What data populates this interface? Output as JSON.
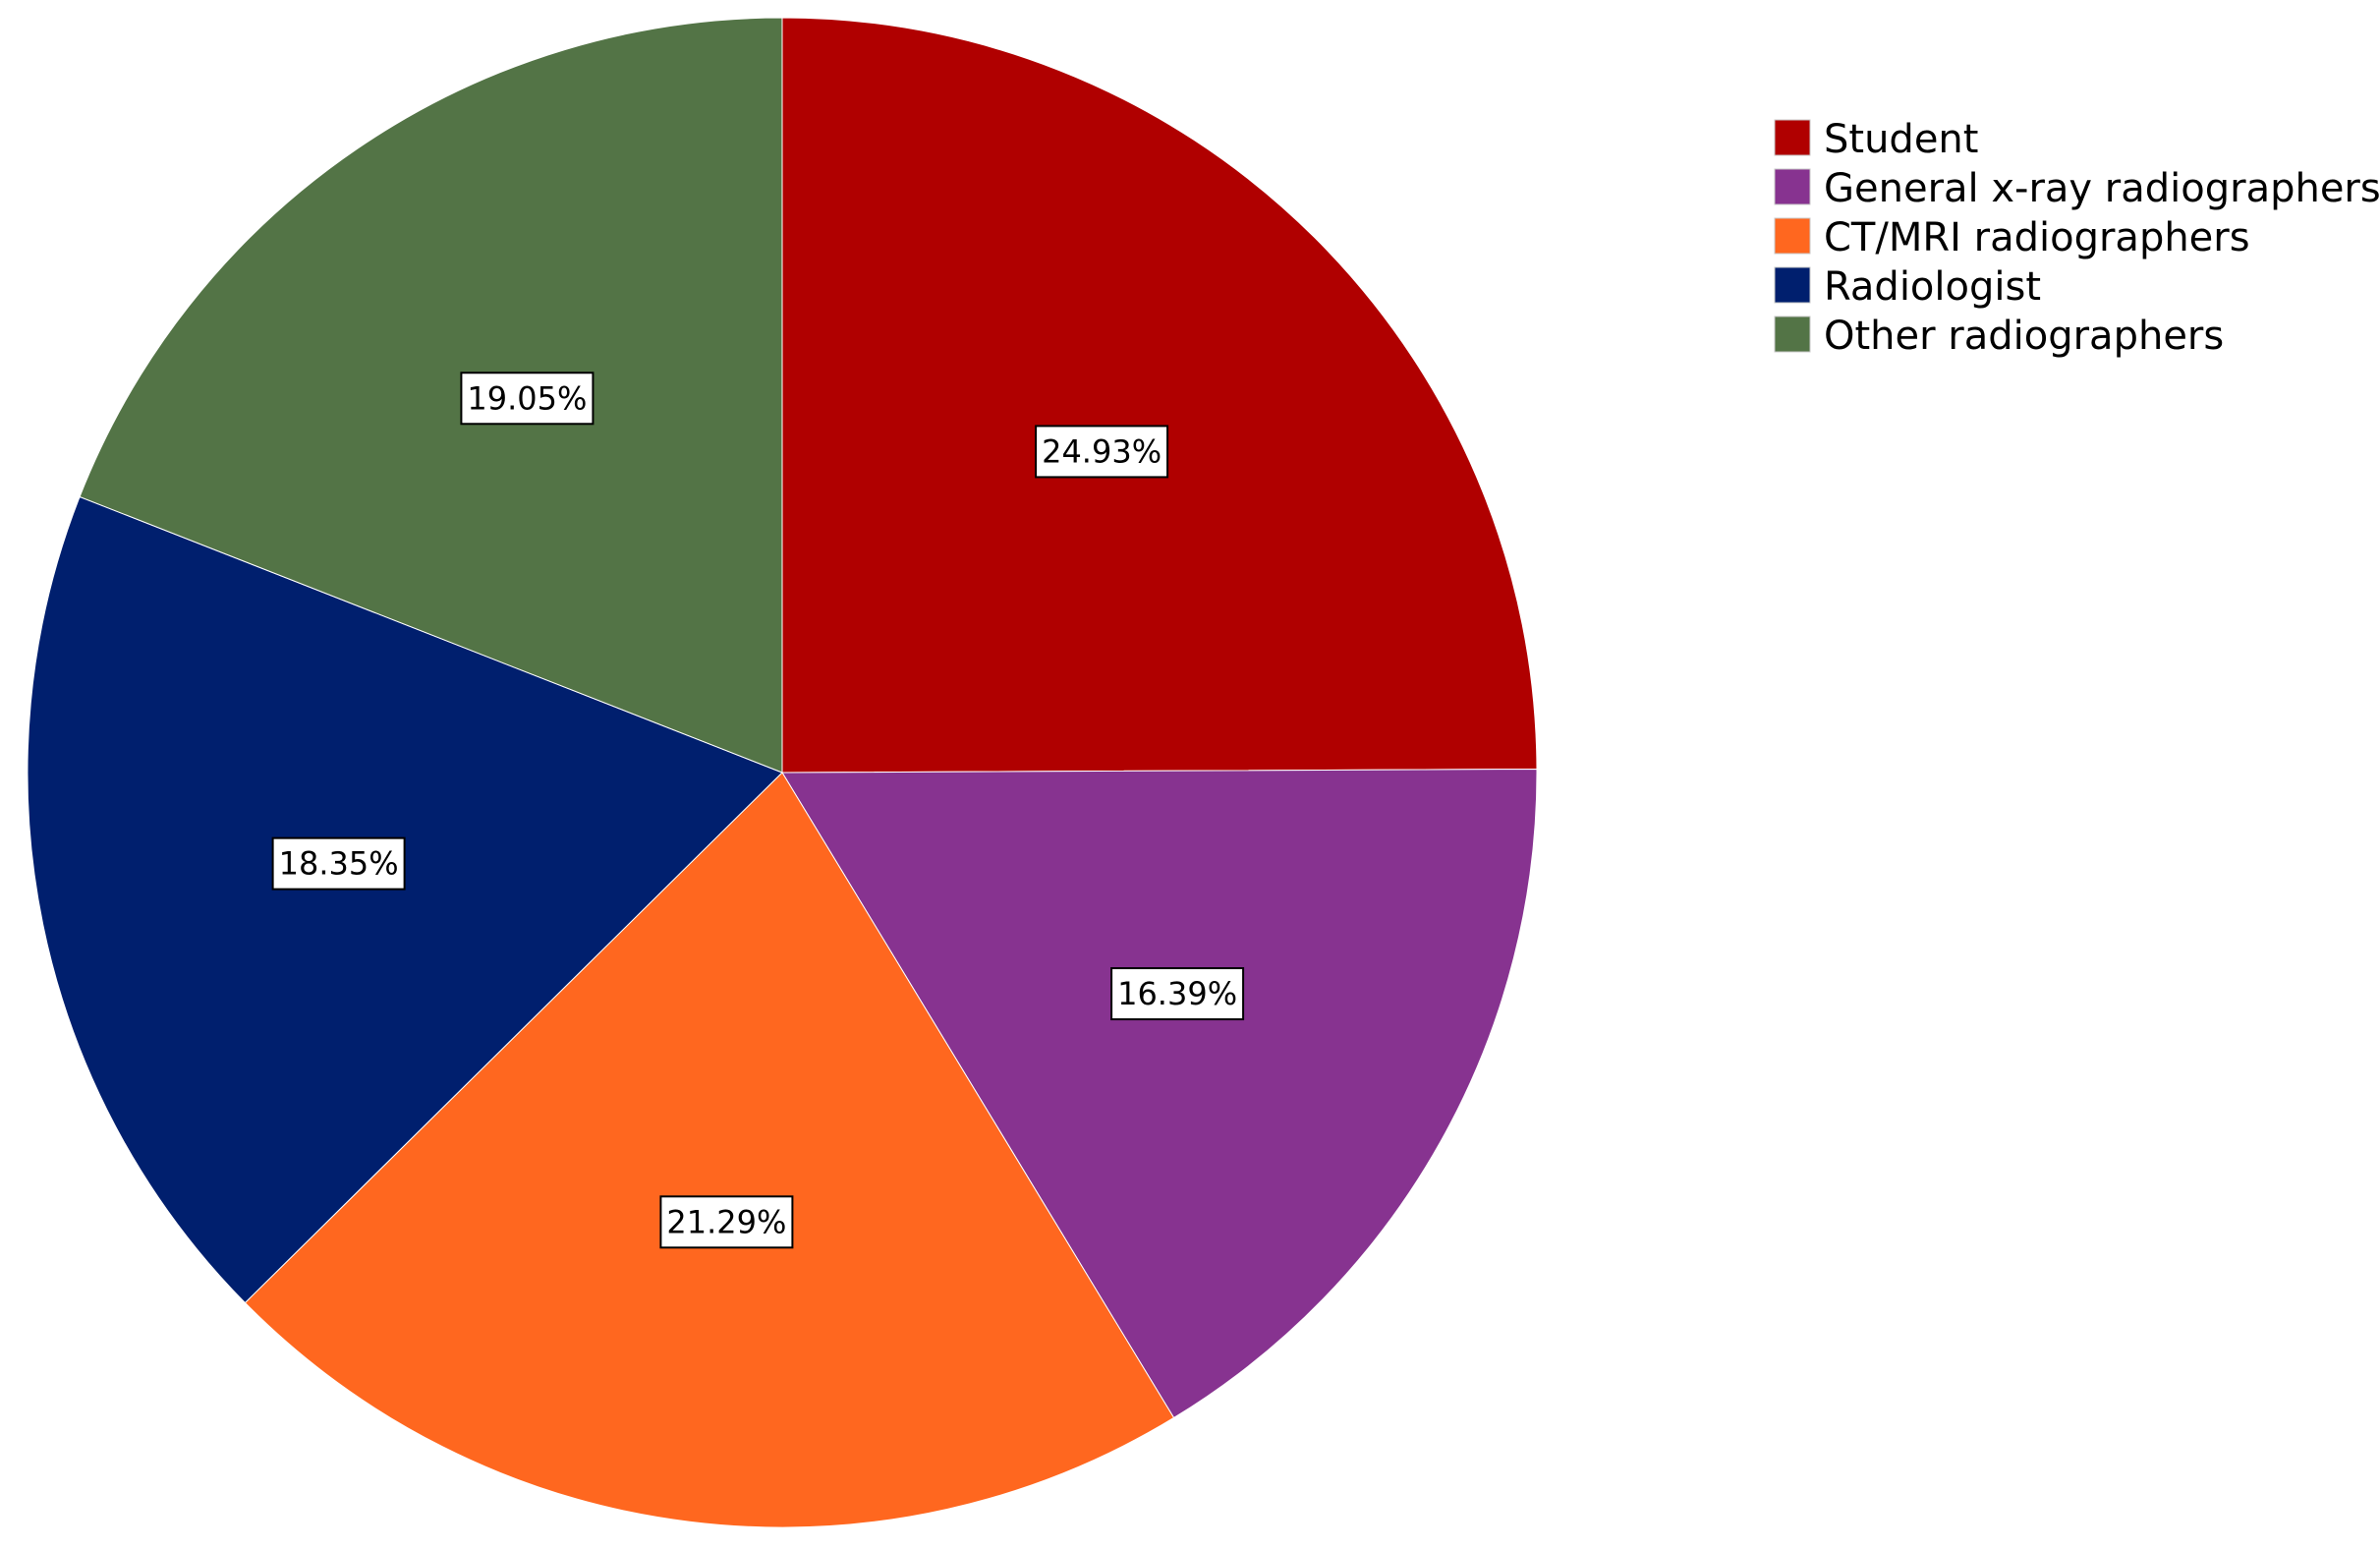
{
  "chart_data": {
    "type": "pie",
    "title": "",
    "start_angle_deg": 0,
    "direction": "clockwise",
    "legend_position": "top-right",
    "slices": [
      {
        "label": "Student",
        "value": 24.93,
        "value_label": "24.93%",
        "color": "#B00000"
      },
      {
        "label": "General x-ray radiographers",
        "value": 16.39,
        "value_label": "16.39%",
        "color": "#873390"
      },
      {
        "label": "CT/MRI radiographers",
        "value": 21.29,
        "value_label": "21.29%",
        "color": "#FF671F"
      },
      {
        "label": "Radiologist",
        "value": 18.35,
        "value_label": "18.35%",
        "color": "#001F6E"
      },
      {
        "label": "Other radiographers",
        "value": 19.05,
        "value_label": "19.05%",
        "color": "#537446"
      }
    ]
  }
}
